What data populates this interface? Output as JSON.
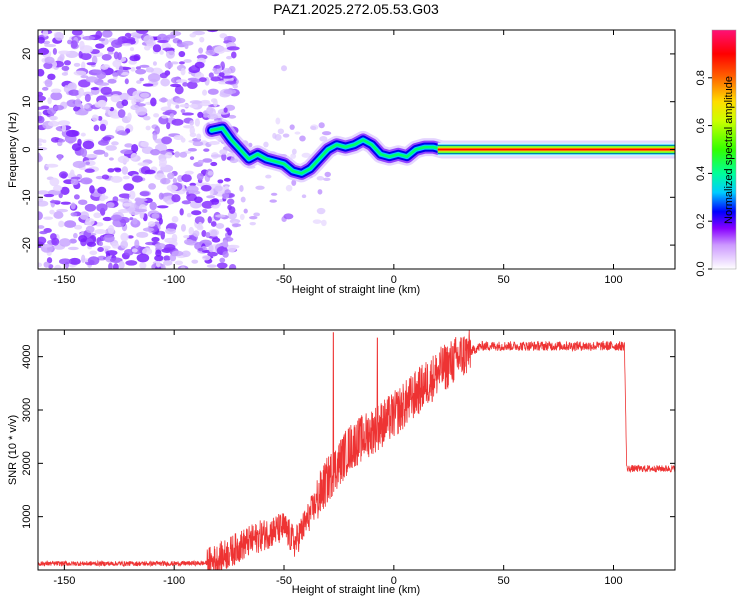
{
  "figure": {
    "title": "PAZ1.2025.272.05.53.G03"
  },
  "chart_data": [
    {
      "type": "heatmap",
      "name": "spectrogram",
      "xlabel": "Height of straight line (km)",
      "ylabel": "Frequency (Hz)",
      "xlim": [
        -162,
        128
      ],
      "ylim": [
        -25,
        25
      ],
      "xticks": [
        -150,
        -100,
        -50,
        0,
        50,
        100
      ],
      "yticks": [
        -20,
        -10,
        0,
        10,
        20
      ],
      "ridge": {
        "description": "frequency of peak spectral amplitude vs height",
        "x": [
          -83,
          -78,
          -74,
          -70,
          -66,
          -62,
          -58,
          -54,
          -50,
          -46,
          -42,
          -38,
          -34,
          -30,
          -26,
          -22,
          -18,
          -14,
          -10,
          -6,
          -2,
          2,
          6,
          10,
          14,
          18,
          22,
          30,
          128
        ],
        "y": [
          4,
          4.5,
          2,
          0,
          -2,
          -1,
          -2,
          -2.5,
          -3,
          -4.5,
          -5,
          -4,
          -2,
          0,
          1,
          0.5,
          1,
          2,
          1,
          -1,
          -1.5,
          -1,
          -1.5,
          0,
          0.5,
          0.5,
          0,
          0,
          0
        ]
      },
      "noise_region": {
        "x_from": -162,
        "x_to": -82,
        "y_from": -25,
        "y_to": 25
      }
    },
    {
      "type": "colorbar",
      "name": "amplitude-colorbar",
      "label": "Normalized spectral amplitude",
      "range": [
        0,
        1
      ],
      "ticks": [
        0.0,
        0.2,
        0.4,
        0.6,
        0.8
      ],
      "tick_labels": [
        "0.0",
        "0.2",
        "0.4",
        "0.6",
        "0.8"
      ],
      "colors": [
        "#ffffff",
        "#cc99ff",
        "#8800ff",
        "#0000ff",
        "#00ccff",
        "#00ff66",
        "#66ff00",
        "#ffff00",
        "#ff8800",
        "#ff0000",
        "#ff0066",
        "#ff3388"
      ]
    },
    {
      "type": "line",
      "name": "snr",
      "xlabel": "Height of straight line (km)",
      "ylabel": "SNR (10 * v/v)",
      "xlim": [
        -162,
        128
      ],
      "ylim": [
        0,
        4500
      ],
      "xticks": [
        -150,
        -100,
        -50,
        0,
        50,
        100
      ],
      "yticks": [
        1000,
        2000,
        3000,
        4000
      ],
      "color": "#ee3333",
      "envelope": {
        "x": [
          -162,
          -100,
          -85,
          -80,
          -70,
          -60,
          -50,
          -45,
          -40,
          -30,
          -20,
          -10,
          0,
          10,
          20,
          30,
          40,
          60,
          80,
          100,
          105,
          106,
          128
        ],
        "y": [
          120,
          120,
          130,
          200,
          450,
          650,
          800,
          500,
          900,
          1700,
          2300,
          2600,
          2900,
          3300,
          3700,
          4000,
          4200,
          4200,
          4200,
          4200,
          4200,
          1900,
          1900
        ]
      },
      "spikes": [
        {
          "x": -27.5,
          "y": 4450
        },
        {
          "x": -7.5,
          "y": 4350
        }
      ]
    }
  ]
}
